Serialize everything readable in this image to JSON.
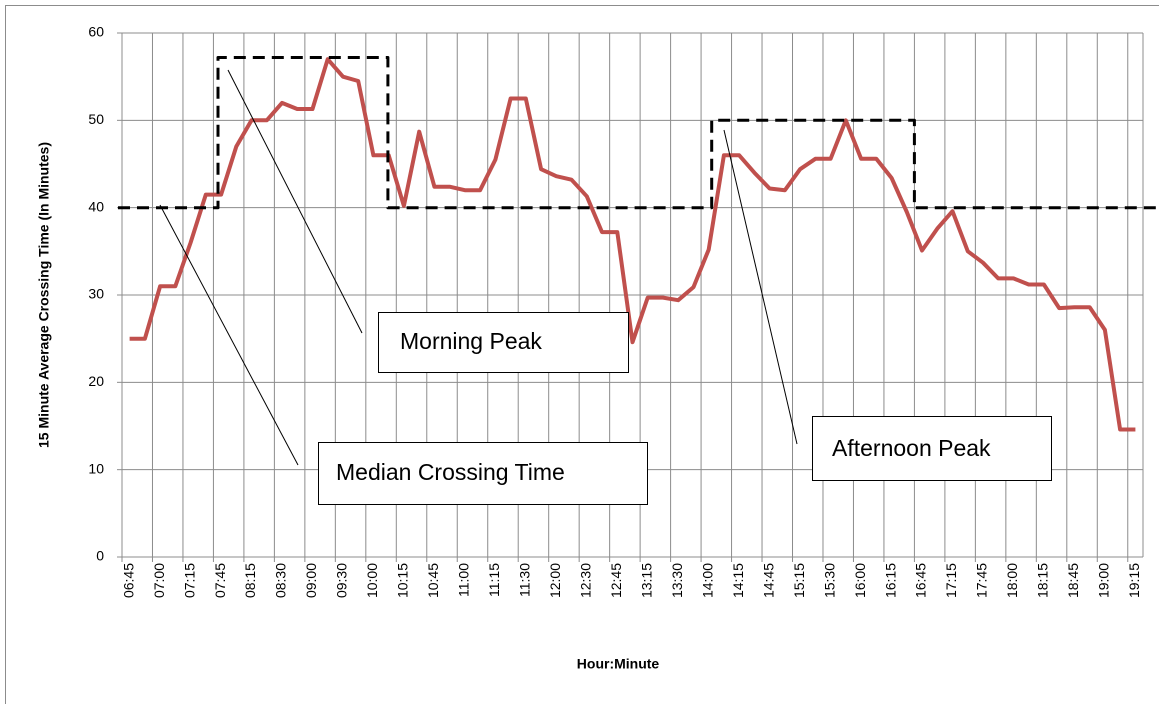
{
  "chart_data": {
    "type": "line",
    "x_label": "Hour:Minute",
    "y_label": "15 Minute Average Crossing Time (In Minutes)",
    "categories": [
      "06:45",
      null,
      "07:00",
      null,
      "07:15",
      null,
      "07:45",
      null,
      "08:15",
      null,
      "08:30",
      null,
      "09:00",
      null,
      "09:30",
      null,
      "10:00",
      null,
      "10:15",
      null,
      "10:45",
      null,
      "11:00",
      null,
      "11:15",
      null,
      "11:30",
      null,
      "12:00",
      null,
      "12:30",
      null,
      "12:45",
      null,
      "13:15",
      null,
      "13:30",
      null,
      "14:00",
      null,
      "14:15",
      null,
      "14:45",
      null,
      "15:15",
      null,
      "15:30",
      null,
      "16:00",
      null,
      "16:15",
      null,
      "16:45",
      null,
      "17:15",
      null,
      "17:45",
      null,
      "18:00",
      null,
      "18:15",
      null,
      "18:45",
      null,
      "19:00",
      null,
      "19:15"
    ],
    "series": [
      {
        "color": "#c0504d",
        "values": [
          25,
          25,
          31,
          31,
          36,
          41.5,
          41.5,
          47,
          50,
          50,
          52,
          51.3,
          51.3,
          57,
          55,
          54.5,
          46,
          46,
          40.2,
          48.7,
          42.4,
          42.4,
          42,
          42,
          45.5,
          52.5,
          52.5,
          44.4,
          43.6,
          43.2,
          41.3,
          37.2,
          37.2,
          24.6,
          29.7,
          29.7,
          29.4,
          30.9,
          35.2,
          46,
          46,
          44,
          42.2,
          42,
          44.4,
          45.6,
          45.6,
          50,
          45.6,
          45.6,
          43.4,
          39.5,
          35.1,
          37.6,
          39.6,
          35,
          33.7,
          31.9,
          31.9,
          31.2,
          31.2,
          28.5,
          28.6,
          28.6,
          26,
          14.6,
          14.6
        ]
      },
      {
        "color": "#000000",
        "dashed": true,
        "x": [
          -0.76,
          5.8,
          5.8,
          16.95,
          16.95,
          38.2,
          38.2,
          51.5,
          51.5,
          67.5
        ],
        "values": [
          40,
          40,
          57.2,
          57.2,
          40,
          40,
          50,
          50,
          40,
          40
        ]
      }
    ],
    "annotations": [
      "Morning Peak",
      "Median Crossing Time",
      "Afternoon Peak"
    ],
    "ylim": [
      0,
      60
    ],
    "yticks": [
      0,
      10,
      20,
      30,
      40,
      50,
      60
    ],
    "grid": true
  }
}
